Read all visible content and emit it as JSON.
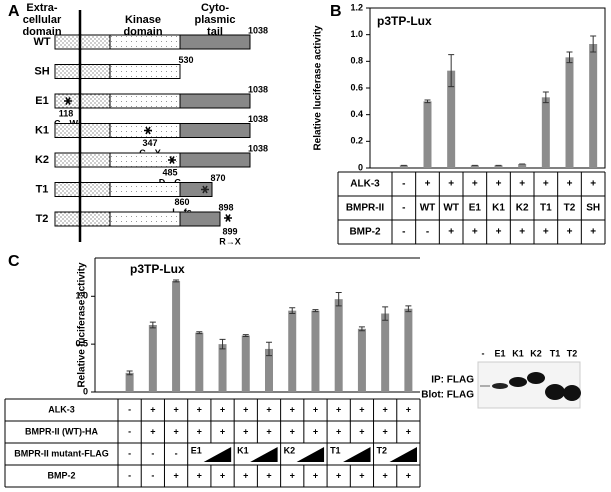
{
  "panel_a": {
    "label": "A",
    "headers": [
      [
        "Extra-",
        "cellular",
        "domain"
      ],
      [
        "Kinase",
        "domain"
      ],
      [
        "Cyto-",
        "plasmic",
        "tail"
      ]
    ],
    "constructs": [
      {
        "name": "WT",
        "end": "1038"
      },
      {
        "name": "SH",
        "end": "530"
      },
      {
        "name": "E1",
        "end": "1038",
        "site": "118",
        "change": "C→W"
      },
      {
        "name": "K1",
        "end": "1038",
        "site": "347",
        "change": "C→Y"
      },
      {
        "name": "K2",
        "end": "1038",
        "site": "485",
        "change": "D→G"
      },
      {
        "name": "T1",
        "end": "870",
        "site": "860",
        "change": "I→fs"
      },
      {
        "name": "T2",
        "end": "898",
        "site": "899",
        "change": "R→X"
      }
    ]
  },
  "chart_data": [
    {
      "type": "bar",
      "panel": "B",
      "title": "p3TP-Lux",
      "y_label": "Relative luciferase activity",
      "color": "#8c8c8c",
      "values": [
        0.02,
        0.5,
        0.73,
        0.02,
        0.02,
        0.03,
        0.53,
        0.83,
        0.93
      ],
      "errors": [
        0,
        0.01,
        0.12,
        0,
        0,
        0,
        0.04,
        0.04,
        0.06
      ],
      "ylim": [
        0,
        1.2
      ],
      "yticks": [
        0,
        0.2,
        0.4,
        0.6,
        0.8,
        {
          "value": 1,
          "label": "1.0"
        },
        1.2
      ]
    },
    {
      "type": "bar",
      "panel": "C",
      "title": "p3TP-Lux",
      "y_label": "Relative luciferase activity",
      "color": "#8c8c8c",
      "values": [
        0.2,
        0.7,
        1.16,
        0.62,
        0.5,
        0.59,
        0.45,
        0.85,
        0.85,
        0.97,
        0.66,
        0.82,
        0.87
      ],
      "errors": [
        0.02,
        0.03,
        0.01,
        0.01,
        0.05,
        0.01,
        0.07,
        0.03,
        0.01,
        0.07,
        0.02,
        0.07,
        0.03
      ],
      "ylim": [
        0,
        1.4
      ],
      "yticks": [
        0,
        0.5,
        {
          "value": 1,
          "label": "1.0"
        }
      ]
    }
  ],
  "table_b": {
    "rows": [
      {
        "label": "ALK-3",
        "cells": [
          "-",
          "+",
          "+",
          "+",
          "+",
          "+",
          "+",
          "+",
          "+"
        ]
      },
      {
        "label": "BMPR-II",
        "cells": [
          "-",
          "WT",
          "WT",
          "E1",
          "K1",
          "K2",
          "T1",
          "T2",
          "SH"
        ]
      },
      {
        "label": "BMP-2",
        "cells": [
          "-",
          "-",
          "+",
          "+",
          "+",
          "+",
          "+",
          "+",
          "+"
        ]
      }
    ]
  },
  "table_c": {
    "rows": [
      {
        "label": "ALK-3",
        "cells": [
          "-",
          "+",
          "+",
          "+",
          "+",
          "+",
          "+",
          "+",
          "+",
          "+",
          "+",
          "+",
          "+"
        ]
      },
      {
        "label": "BMPR-II (WT)-HA",
        "cells": [
          "-",
          "+",
          "+",
          "+",
          "+",
          "+",
          "+",
          "+",
          "+",
          "+",
          "+",
          "+",
          "+"
        ]
      },
      {
        "label": "BMPR-II mutant-FLAG",
        "cells": [
          "-",
          "-",
          "-"
        ],
        "groups": [
          "E1",
          "K1",
          "K2",
          "T1",
          "T2"
        ]
      },
      {
        "label": "BMP-2",
        "cells": [
          "-",
          "-",
          "+",
          "+",
          "+",
          "+",
          "+",
          "+",
          "+",
          "+",
          "+",
          "+",
          "+"
        ]
      }
    ]
  },
  "blot": {
    "lanes": [
      "-",
      "E1",
      "K1",
      "K2",
      "T1",
      "T2"
    ],
    "labels": [
      "IP: FLAG",
      "Blot: FLAG"
    ]
  }
}
